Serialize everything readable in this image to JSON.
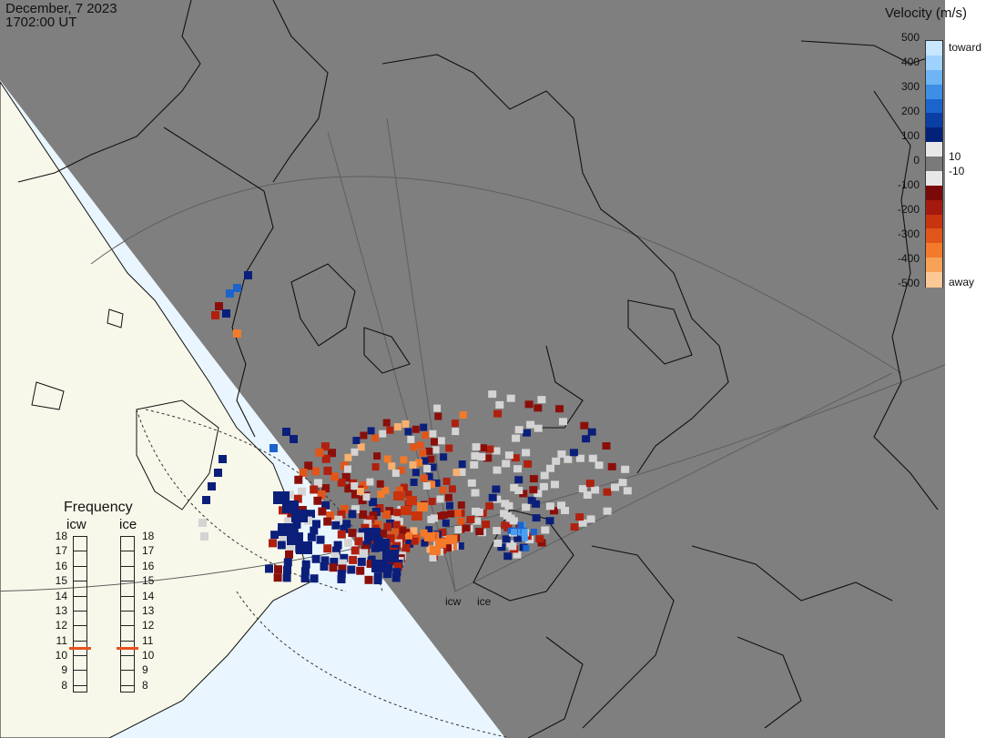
{
  "header": {
    "date": "December, 7 2023",
    "time": "1702:00 UT"
  },
  "colorbar": {
    "title": "Velocity (m/s)",
    "toward_label": "toward",
    "away_label": "away",
    "ticks": [
      "500",
      "400",
      "300",
      "200",
      "100",
      "0",
      "-100",
      "-200",
      "-300",
      "-400",
      "-500"
    ],
    "near_zero_labels": [
      "10",
      "-10"
    ],
    "toward_colors": [
      "#c8e6ff",
      "#9fd2ff",
      "#6fb4f5",
      "#3d8fe6",
      "#1c63cc",
      "#0b3ea3",
      "#04217a"
    ],
    "zero_colors": [
      "#e8e8e8",
      "#7a7a7a",
      "#e8e8e8"
    ],
    "away_colors": [
      "#7a0a0a",
      "#a51a0e",
      "#c7340e",
      "#e0561a",
      "#f27a2a",
      "#f8a258",
      "#fcc895"
    ]
  },
  "frequency": {
    "title": "Frequency",
    "radars": [
      {
        "name": "icw",
        "value_mhz": 10.5
      },
      {
        "name": "ice",
        "value_mhz": 10.5
      }
    ],
    "scale": [
      "18",
      "17",
      "16",
      "15",
      "14",
      "13",
      "12",
      "11",
      "10",
      "9",
      "8"
    ]
  },
  "radar_sites": [
    {
      "label": "icw"
    },
    {
      "label": "ice"
    }
  ],
  "map_colors": {
    "night": "#7f7f7f",
    "day_land": "#f8f8ea",
    "day_ocean": "#eaf6ff",
    "coast": "#111111"
  }
}
